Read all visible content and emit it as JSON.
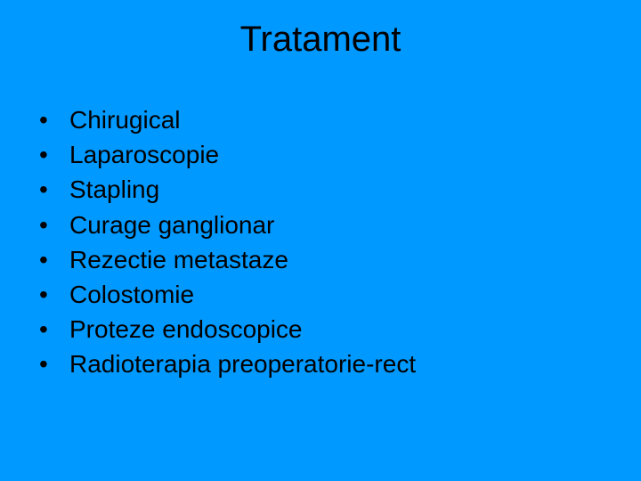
{
  "background_color": "#0099ff",
  "text_color": "#000000",
  "title": "Tratament",
  "title_fontsize": 40,
  "body_fontsize": 28,
  "bullets": [
    "Chirugical",
    "Laparoscopie",
    "Stapling",
    "Curage ganglionar",
    "Rezectie metastaze",
    "Colostomie",
    "Proteze endoscopice",
    "Radioterapia preoperatorie-rect"
  ]
}
